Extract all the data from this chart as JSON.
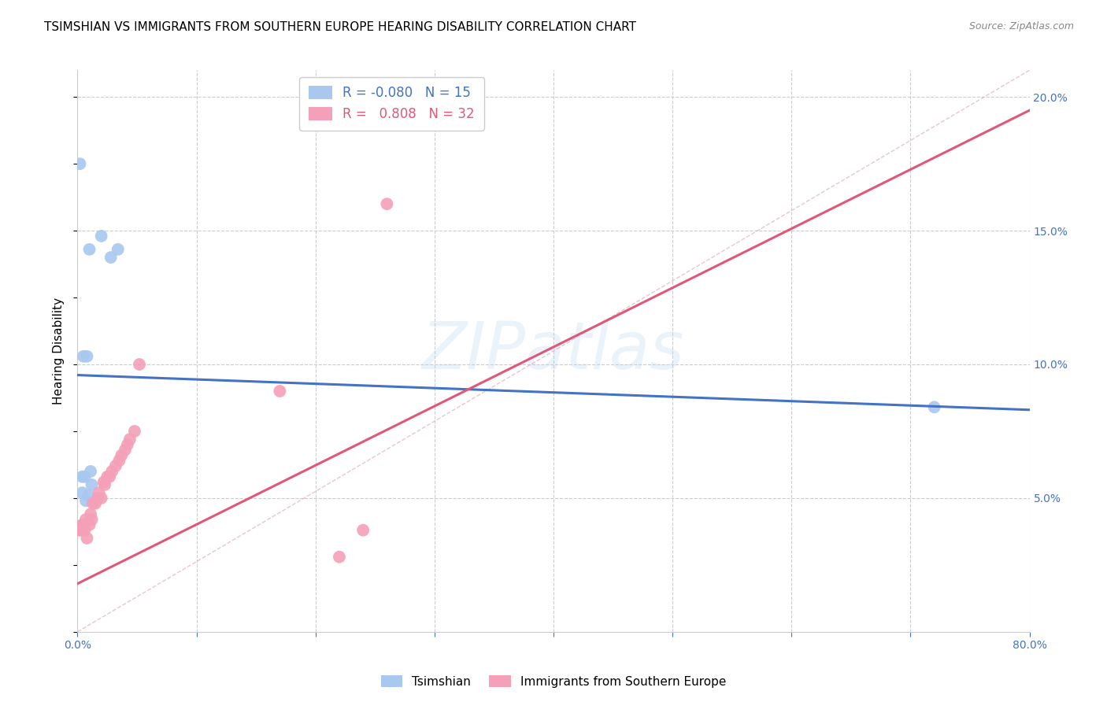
{
  "title": "TSIMSHIAN VS IMMIGRANTS FROM SOUTHERN EUROPE HEARING DISABILITY CORRELATION CHART",
  "source": "Source: ZipAtlas.com",
  "ylabel": "Hearing Disability",
  "xlim": [
    0.0,
    0.8
  ],
  "ylim": [
    0.0,
    0.21
  ],
  "xticks": [
    0.0,
    0.1,
    0.2,
    0.3,
    0.4,
    0.5,
    0.6,
    0.7,
    0.8
  ],
  "xtick_labels": [
    "0.0%",
    "",
    "",
    "",
    "",
    "",
    "",
    "",
    "80.0%"
  ],
  "yticks_right": [
    0.05,
    0.1,
    0.15,
    0.2
  ],
  "ytick_labels_right": [
    "5.0%",
    "10.0%",
    "15.0%",
    "20.0%"
  ],
  "legend_R1": "-0.080",
  "legend_N1": "15",
  "legend_R2": "0.808",
  "legend_N2": "32",
  "color_blue": "#A8C8F0",
  "color_pink": "#F4A0B8",
  "line_blue": "#4472C4",
  "line_pink": "#E05878",
  "diag_color": "#D8A0B0",
  "tsimshian_x": [
    0.002,
    0.01,
    0.02,
    0.028,
    0.034,
    0.005,
    0.008,
    0.012,
    0.004,
    0.006,
    0.004,
    0.007,
    0.009,
    0.011,
    0.72
  ],
  "tsimshian_y": [
    0.175,
    0.143,
    0.148,
    0.14,
    0.143,
    0.103,
    0.103,
    0.055,
    0.058,
    0.058,
    0.052,
    0.049,
    0.051,
    0.06,
    0.084
  ],
  "immigrants_x": [
    0.002,
    0.003,
    0.004,
    0.005,
    0.006,
    0.007,
    0.008,
    0.01,
    0.011,
    0.012,
    0.013,
    0.015,
    0.017,
    0.018,
    0.02,
    0.022,
    0.023,
    0.025,
    0.027,
    0.029,
    0.032,
    0.035,
    0.037,
    0.04,
    0.042,
    0.044,
    0.048,
    0.052,
    0.17,
    0.22,
    0.24,
    0.26
  ],
  "immigrants_y": [
    0.038,
    0.038,
    0.04,
    0.04,
    0.038,
    0.042,
    0.035,
    0.04,
    0.044,
    0.042,
    0.048,
    0.048,
    0.05,
    0.052,
    0.05,
    0.056,
    0.055,
    0.058,
    0.058,
    0.06,
    0.062,
    0.064,
    0.066,
    0.068,
    0.07,
    0.072,
    0.075,
    0.1,
    0.09,
    0.028,
    0.038,
    0.16
  ],
  "blue_line_x": [
    0.0,
    0.8
  ],
  "blue_line_y": [
    0.096,
    0.083
  ],
  "pink_line_x": [
    0.0,
    0.8
  ],
  "pink_line_y": [
    0.018,
    0.195
  ],
  "diag_line_x": [
    0.0,
    0.8
  ],
  "diag_line_y": [
    0.0,
    0.21
  ],
  "grid_color": "#CCCCCC",
  "background_color": "#FFFFFF",
  "title_fontsize": 11,
  "axis_label_fontsize": 11,
  "tick_fontsize": 10,
  "legend_fontsize": 12
}
